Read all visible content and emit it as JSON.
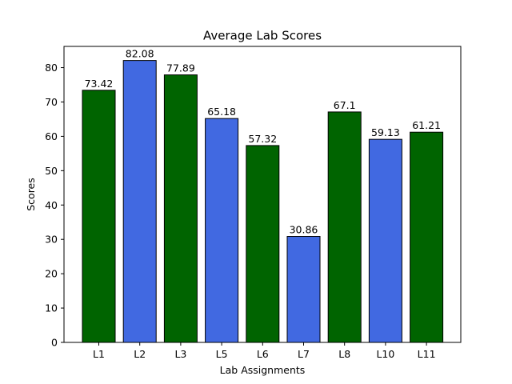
{
  "chart_data": {
    "type": "bar",
    "title": "Average Lab Scores",
    "xlabel": "Lab Assignments",
    "ylabel": "Scores",
    "categories": [
      "L1",
      "L2",
      "L3",
      "L5",
      "L6",
      "L7",
      "L8",
      "L10",
      "L11"
    ],
    "values": [
      73.42,
      82.08,
      77.89,
      65.18,
      57.32,
      30.86,
      67.1,
      59.13,
      61.21
    ],
    "value_labels": [
      "73.42",
      "82.08",
      "77.89",
      "65.18",
      "57.32",
      "30.86",
      "67.1",
      "59.13",
      "61.21"
    ],
    "bar_colors": [
      "#006400",
      "#4169e1",
      "#006400",
      "#4169e1",
      "#006400",
      "#4169e1",
      "#006400",
      "#4169e1",
      "#006400"
    ],
    "edge_color": "#000000",
    "ylim": [
      0,
      86.184
    ],
    "yticks": [
      0,
      10,
      20,
      30,
      40,
      50,
      60,
      70,
      80
    ],
    "ytick_labels": [
      "0",
      "10",
      "20",
      "30",
      "40",
      "50",
      "60",
      "70",
      "80"
    ],
    "grid": false,
    "legend": "none"
  }
}
